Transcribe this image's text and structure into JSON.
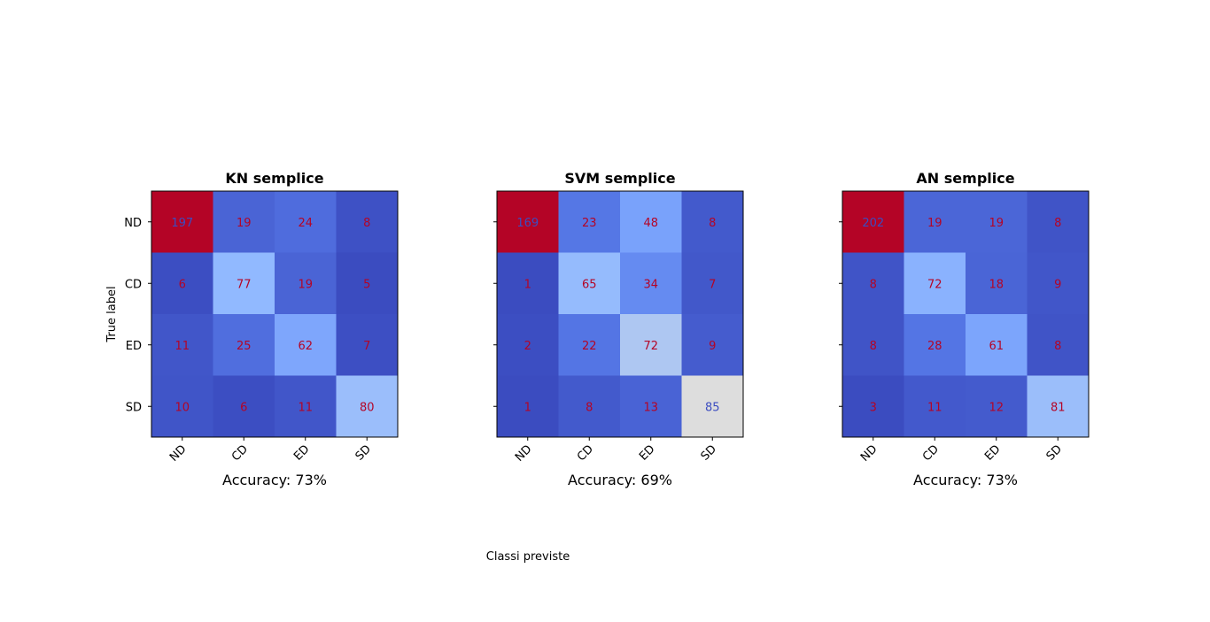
{
  "figure": {
    "ylabel": "True label",
    "xlabel": "Classi previste"
  },
  "chart_data": [
    {
      "type": "heatmap",
      "title": "KN semplice",
      "accuracy_label": "Accuracy: 73%",
      "row_labels": [
        "ND",
        "CD",
        "ED",
        "SD"
      ],
      "col_labels": [
        "ND",
        "CD",
        "ED",
        "SD"
      ],
      "matrix": [
        [
          197,
          19,
          24,
          8
        ],
        [
          6,
          77,
          19,
          5
        ],
        [
          11,
          25,
          62,
          7
        ],
        [
          10,
          6,
          11,
          80
        ]
      ],
      "colormap": "coolwarm"
    },
    {
      "type": "heatmap",
      "title": "SVM semplice",
      "accuracy_label": "Accuracy: 69%",
      "row_labels": [
        "ND",
        "CD",
        "ED",
        "SD"
      ],
      "col_labels": [
        "ND",
        "CD",
        "ED",
        "SD"
      ],
      "matrix": [
        [
          169,
          23,
          48,
          8
        ],
        [
          1,
          65,
          34,
          7
        ],
        [
          2,
          22,
          72,
          9
        ],
        [
          1,
          8,
          13,
          85
        ]
      ],
      "colormap": "coolwarm"
    },
    {
      "type": "heatmap",
      "title": "AN semplice",
      "accuracy_label": "Accuracy: 73%",
      "row_labels": [
        "ND",
        "CD",
        "ED",
        "SD"
      ],
      "col_labels": [
        "ND",
        "CD",
        "ED",
        "SD"
      ],
      "matrix": [
        [
          202,
          19,
          19,
          8
        ],
        [
          8,
          72,
          18,
          9
        ],
        [
          8,
          28,
          61,
          8
        ],
        [
          3,
          11,
          12,
          81
        ]
      ],
      "colormap": "coolwarm"
    }
  ],
  "colors": {
    "text_on_red": "#3b4cc0",
    "text_on_blue": "#b40426",
    "frame": "#000000"
  }
}
